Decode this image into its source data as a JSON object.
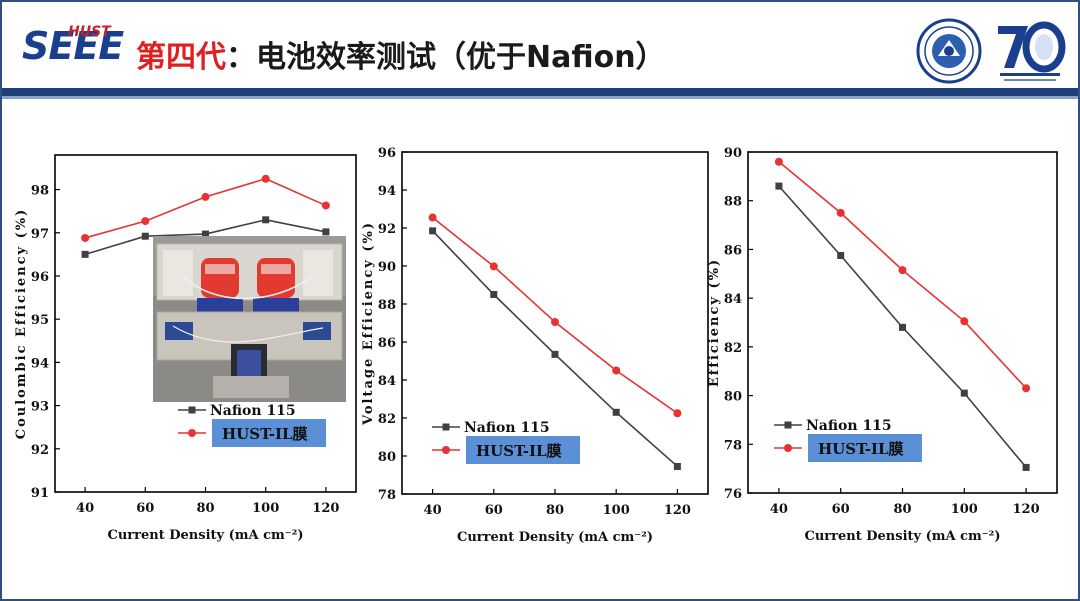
{
  "header": {
    "logo_text": "SEEE",
    "logo_super": "HUST",
    "title_red": "第四代",
    "title_rest": "：电池效率测试（优于Nafion）"
  },
  "colors": {
    "series_nafion": "#404040",
    "series_hust": "#e83232",
    "legend_box": "#5b8fd6",
    "header_bar": "#1f3f7a"
  },
  "chart_data": [
    {
      "type": "line",
      "xlabel": "Current Density (mA cm⁻²)",
      "ylabel": "Coulombic Efficiency (%)",
      "x": [
        40,
        60,
        80,
        100,
        120
      ],
      "xlim": [
        30,
        130
      ],
      "ylim": [
        91,
        98.8
      ],
      "yticks": [
        91,
        92,
        93,
        94,
        95,
        96,
        97,
        98
      ],
      "series": [
        {
          "name": "Nafion 115",
          "values": [
            96.5,
            96.92,
            96.97,
            97.3,
            97.02
          ]
        },
        {
          "name": "HUST-IL膜",
          "values": [
            96.88,
            97.27,
            97.83,
            98.25,
            97.63
          ]
        }
      ],
      "legend_location": "bottom-center",
      "has_photo_inset": true
    },
    {
      "type": "line",
      "xlabel": "Current Density (mA cm⁻²)",
      "ylabel": "Voltage Efficiency (%)",
      "x": [
        40,
        60,
        80,
        100,
        120
      ],
      "xlim": [
        30,
        130
      ],
      "ylim": [
        78,
        96
      ],
      "yticks": [
        78,
        80,
        82,
        84,
        86,
        88,
        90,
        92,
        94,
        96
      ],
      "series": [
        {
          "name": "Nafion 115",
          "values": [
            91.85,
            88.5,
            85.35,
            82.3,
            79.45
          ]
        },
        {
          "name": "HUST-IL膜",
          "values": [
            92.55,
            89.98,
            87.05,
            84.5,
            82.25
          ]
        }
      ],
      "legend_location": "bottom-left"
    },
    {
      "type": "line",
      "xlabel": "Current Density (mA cm⁻²)",
      "ylabel": "Efficiency (%)",
      "x": [
        40,
        60,
        80,
        100,
        120
      ],
      "xlim": [
        30,
        130
      ],
      "ylim": [
        76,
        90
      ],
      "yticks": [
        76,
        78,
        80,
        82,
        84,
        86,
        88,
        90
      ],
      "series": [
        {
          "name": "Nafion 115",
          "values": [
            88.6,
            85.75,
            82.8,
            80.1,
            77.05
          ]
        },
        {
          "name": "HUST-IL膜",
          "values": [
            89.6,
            87.5,
            85.15,
            83.05,
            80.3
          ]
        }
      ],
      "legend_location": "bottom-left"
    }
  ]
}
